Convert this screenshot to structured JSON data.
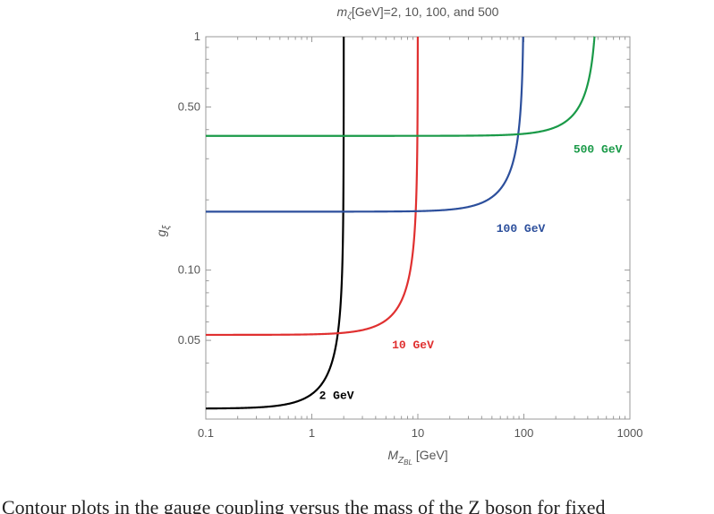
{
  "chart_data": {
    "type": "line",
    "title": {
      "prefix": "m",
      "sub": "ζ",
      "suffix": "[GeV]=2, 10, 100, and 500"
    },
    "xlabel": {
      "main": "M",
      "sub": "Z",
      "subsub": "BL",
      "unit": " [GeV]"
    },
    "ylabel": {
      "main": "g",
      "sub": "ξ"
    },
    "xscale": "log",
    "yscale": "log",
    "xlim": [
      0.1,
      1000
    ],
    "ylim": [
      0.023,
      1
    ],
    "xticks": [
      {
        "value": 0.1,
        "label": "0.1"
      },
      {
        "value": 1,
        "label": "1"
      },
      {
        "value": 10,
        "label": "10"
      },
      {
        "value": 100,
        "label": "100"
      },
      {
        "value": 1000,
        "label": "1000"
      }
    ],
    "yticks": [
      {
        "value": 0.05,
        "label": "0.05"
      },
      {
        "value": 0.1,
        "label": "0.10"
      },
      {
        "value": 0.5,
        "label": "0.50"
      },
      {
        "value": 1,
        "label": "1"
      }
    ],
    "grid": false,
    "legend": "none",
    "series": [
      {
        "name": "2 GeV",
        "mass": 2,
        "plateau": 0.0255,
        "color": "#000000",
        "label_at": [
          1.17,
          0.0281
        ]
      },
      {
        "name": "10 GeV",
        "mass": 10,
        "plateau": 0.0528,
        "color": "#e03030",
        "label_at": [
          5.7,
          0.0463
        ]
      },
      {
        "name": "100 GeV",
        "mass": 100,
        "plateau": 0.178,
        "color": "#2c4f9c",
        "label_at": [
          55,
          0.146
        ]
      },
      {
        "name": "500 GeV",
        "mass": 500,
        "plateau": 0.376,
        "color": "#1a9a48",
        "label_at": [
          293,
          0.319
        ]
      }
    ]
  },
  "caption_fragment": "Contour plots in the gauge coupling versus the mass of the Z boson for fixed"
}
